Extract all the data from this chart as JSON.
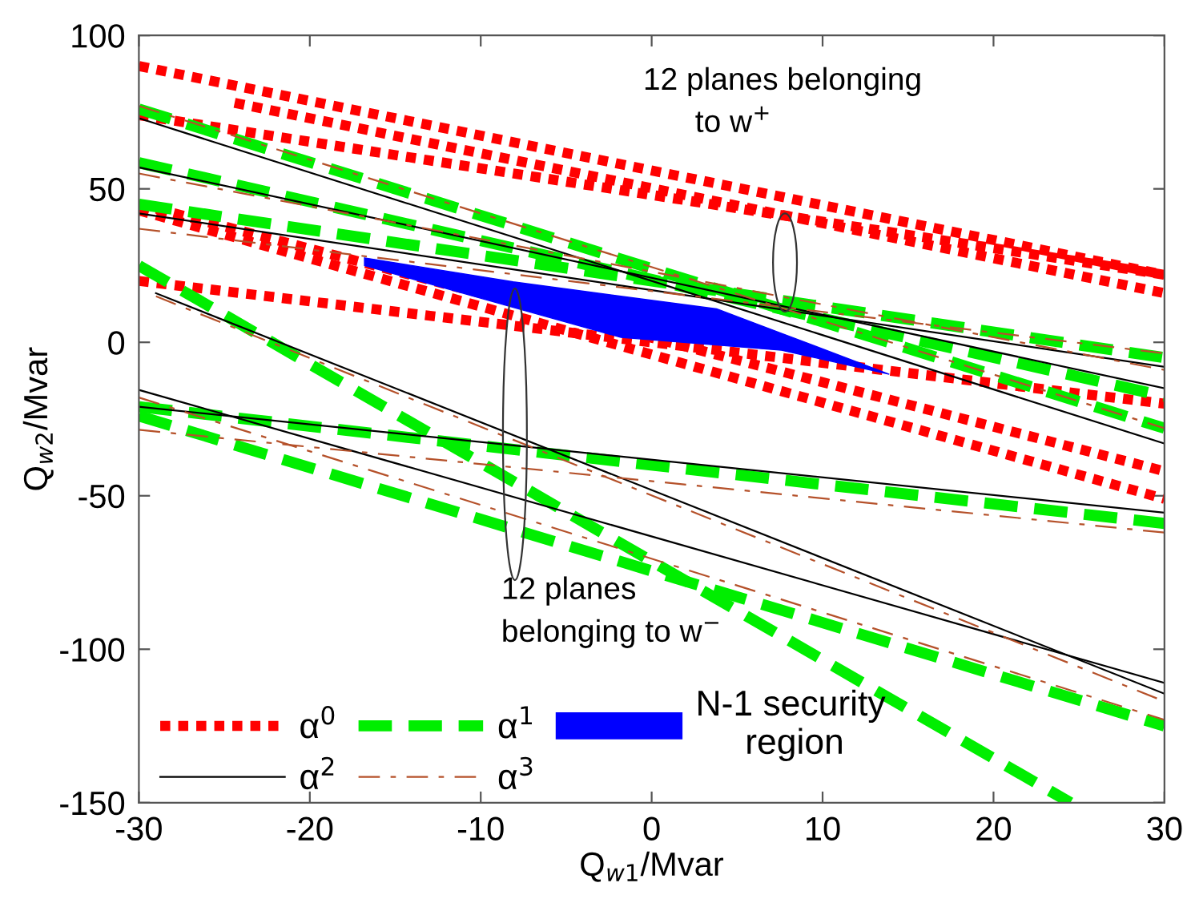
{
  "chart_data": {
    "type": "line",
    "xlabel": "Q$_{w1}$/Mvar",
    "ylabel": "Q$_{w2}$/Mvar",
    "xlim": [
      -30,
      30
    ],
    "ylim": [
      -150,
      100
    ],
    "xticks": [
      -30,
      -20,
      -10,
      0,
      10,
      20,
      30
    ],
    "yticks": [
      -150,
      -100,
      -50,
      0,
      50,
      100
    ],
    "grid": false,
    "legend": "bottom left",
    "marker": "none",
    "annotations": [
      "12 planes belonging\n      to w$^{+}$",
      "12 planes\nbelonging to w$^{−}$"
    ],
    "series": [
      {
        "name": "α$^{0}$",
        "color": "#ff0000",
        "line_style": "dotted",
        "x": [
          -30,
          30
        ],
        "values": [
          90,
          22
        ]
      },
      {
        "color": "#ff0000",
        "line_style": "dotted",
        "x": [
          -24.4,
          30
        ],
        "values": [
          78,
          16
        ]
      },
      {
        "color": "#ff0000",
        "line_style": "dotted",
        "x": [
          -30,
          30
        ],
        "values": [
          74,
          22
        ]
      },
      {
        "color": "#ff0000",
        "line_style": "dotted",
        "x": [
          -30,
          30
        ],
        "values": [
          45,
          -42
        ]
      },
      {
        "color": "#ff0000",
        "line_style": "dotted",
        "x": [
          -30,
          30
        ],
        "values": [
          43,
          -51
        ]
      },
      {
        "color": "#ff0000",
        "line_style": "dotted",
        "x": [
          -30,
          30
        ],
        "values": [
          20,
          -20
        ]
      },
      {
        "name": "α$^{1}$",
        "color": "#00ee00",
        "line_style": "dashed",
        "x": [
          -30,
          30
        ],
        "values": [
          76,
          -28
        ]
      },
      {
        "color": "#00ee00",
        "line_style": "dashed",
        "x": [
          -30,
          30
        ],
        "values": [
          58.5,
          -17.6
        ]
      },
      {
        "color": "#00ee00",
        "line_style": "dashed",
        "x": [
          -30,
          30
        ],
        "values": [
          45,
          -5
        ]
      },
      {
        "color": "#00ee00",
        "line_style": "dashed",
        "x": [
          -30,
          24.5
        ],
        "values": [
          25,
          -150
        ]
      },
      {
        "color": "#00ee00",
        "line_style": "dashed",
        "x": [
          -30,
          30
        ],
        "values": [
          -21,
          -59
        ]
      },
      {
        "color": "#00ee00",
        "line_style": "dashed",
        "x": [
          -30,
          30
        ],
        "values": [
          -24,
          -125
        ]
      },
      {
        "name": "α$^{2}$",
        "color": "#000000",
        "line_style": "solid",
        "x": [
          -30,
          30
        ],
        "values": [
          73,
          -33
        ]
      },
      {
        "color": "#000000",
        "line_style": "solid",
        "x": [
          -30,
          30
        ],
        "values": [
          57,
          -15
        ]
      },
      {
        "color": "#000000",
        "line_style": "solid",
        "x": [
          -30,
          30
        ],
        "values": [
          42,
          -8
        ]
      },
      {
        "color": "#000000",
        "line_style": "solid",
        "x": [
          -29,
          30
        ],
        "values": [
          16,
          -114.5
        ]
      },
      {
        "color": "#000000",
        "line_style": "solid",
        "x": [
          -30,
          30
        ],
        "values": [
          -15.5,
          -111
        ]
      },
      {
        "color": "#000000",
        "line_style": "solid",
        "x": [
          -30,
          30
        ],
        "values": [
          -21,
          -55.5
        ]
      },
      {
        "name": "α$^{3}$",
        "color": "#b5512a",
        "line_style": "dashdot",
        "x": [
          -30,
          30
        ],
        "values": [
          77,
          -28
        ]
      },
      {
        "color": "#b5512a",
        "line_style": "dashdot",
        "x": [
          -30,
          30
        ],
        "values": [
          55,
          -9
        ]
      },
      {
        "color": "#b5512a",
        "line_style": "dashdot",
        "x": [
          -30,
          30
        ],
        "values": [
          37,
          -3.6
        ]
      },
      {
        "color": "#b5512a",
        "line_style": "dashdot",
        "x": [
          -29,
          30
        ],
        "values": [
          15,
          -117
        ]
      },
      {
        "color": "#b5512a",
        "line_style": "dashdot",
        "x": [
          -30,
          30
        ],
        "values": [
          -18,
          -123
        ]
      },
      {
        "color": "#b5512a",
        "line_style": "dashdot",
        "x": [
          -30,
          30
        ],
        "values": [
          -28.5,
          -62
        ]
      },
      {
        "type": "area",
        "name": "N-1 security\n     region",
        "color": "#0000ff",
        "x": [
          -16.8,
          -8.1,
          -1.8,
          3.8,
          7.6,
          13.9,
          7.6,
          3.8,
          -1.8,
          -8.1,
          -16.8
        ],
        "values": [
          27.5,
          19.7,
          15,
          10.9,
          2.9,
          -10.4,
          -2.6,
          -0.9,
          1.6,
          11.4,
          25
        ]
      }
    ]
  }
}
